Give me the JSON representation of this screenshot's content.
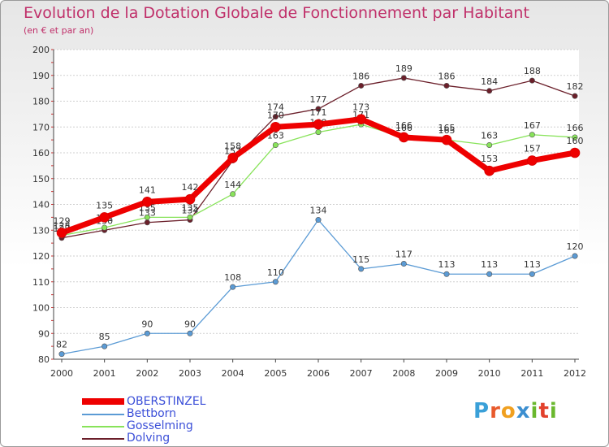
{
  "title": "Evolution de la Dotation Globale de Fonctionnement par Habitant",
  "subtitle": "(en € et par an)",
  "logo": "Proxiti",
  "chart_data": {
    "type": "line",
    "title": "Evolution de la Dotation Globale de Fonctionnement par Habitant",
    "ylabel": "(en € et par an)",
    "xlabel": "",
    "ylim": [
      80,
      200
    ],
    "yticks": [
      80,
      90,
      100,
      110,
      120,
      130,
      140,
      150,
      160,
      170,
      180,
      190,
      200
    ],
    "categories": [
      "2000",
      "2001",
      "2002",
      "2003",
      "2004",
      "2005",
      "2006",
      "2007",
      "2008",
      "2009",
      "2010",
      "2011",
      "2012"
    ],
    "legend_position": "bottom-left",
    "series": [
      {
        "name": "Dolving",
        "color": "#6b1f2a",
        "values": [
          127,
          130,
          133,
          134,
          157,
          174,
          177,
          186,
          189,
          186,
          184,
          188,
          182
        ]
      },
      {
        "name": "Gosselming",
        "color": "#88e35a",
        "values": [
          128,
          131,
          135,
          135,
          144,
          163,
          168,
          171,
          166,
          165,
          163,
          167,
          166
        ]
      },
      {
        "name": "Bettborn",
        "color": "#5b9bd5",
        "values": [
          82,
          85,
          90,
          90,
          108,
          110,
          134,
          115,
          117,
          113,
          113,
          113,
          120
        ]
      },
      {
        "name": "OBERSTINZEL",
        "color": "#ee0000",
        "values": [
          129,
          135,
          141,
          142,
          158,
          170,
          171,
          173,
          166,
          165,
          153,
          157,
          160
        ]
      }
    ],
    "legend_order": [
      "OBERSTINZEL",
      "Bettborn",
      "Gosselming",
      "Dolving"
    ]
  }
}
